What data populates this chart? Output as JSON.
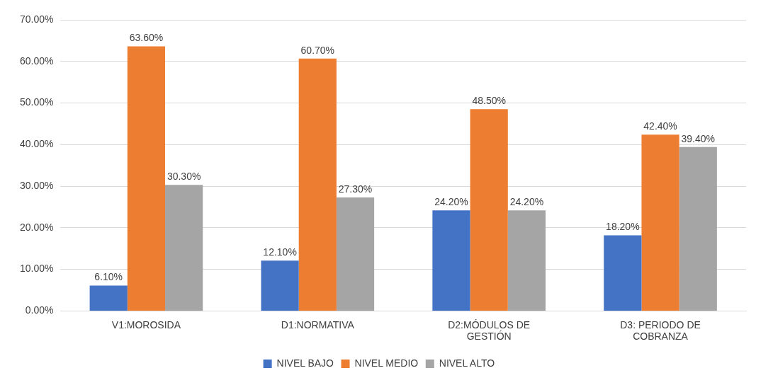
{
  "chart_data": {
    "type": "bar",
    "categories": [
      "V1:MOROSIDA",
      "D1:NORMATIVA",
      "D2:MÓDULOS DE GESTIÓN",
      "D3: PERIODO DE COBRANZA"
    ],
    "series": [
      {
        "name": "NIVEL BAJO",
        "color": "#4472c4",
        "values": [
          6.1,
          12.1,
          24.2,
          18.2
        ],
        "value_labels": [
          "6.10%",
          "12.10%",
          "24.20%",
          "18.20%"
        ]
      },
      {
        "name": "NIVEL MEDIO",
        "color": "#ed7d31",
        "values": [
          63.6,
          60.7,
          48.5,
          42.4
        ],
        "value_labels": [
          "63.60%",
          "60.70%",
          "48.50%",
          "42.40%"
        ]
      },
      {
        "name": "NIVEL ALTO",
        "color": "#a5a5a5",
        "values": [
          30.3,
          27.3,
          24.2,
          39.4
        ],
        "value_labels": [
          "30.30%",
          "27.30%",
          "24.20%",
          "39.40%"
        ]
      }
    ],
    "ylim": [
      0,
      70
    ],
    "yticks": [
      {
        "value": 0,
        "label": "0.00%"
      },
      {
        "value": 10,
        "label": "10.00%"
      },
      {
        "value": 20,
        "label": "20.00%"
      },
      {
        "value": 30,
        "label": "30.00%"
      },
      {
        "value": 40,
        "label": "40.00%"
      },
      {
        "value": 50,
        "label": "50.00%"
      },
      {
        "value": 60,
        "label": "60.00%"
      },
      {
        "value": 70,
        "label": "70.00%"
      }
    ],
    "grid": "y",
    "legend": "bottom"
  }
}
